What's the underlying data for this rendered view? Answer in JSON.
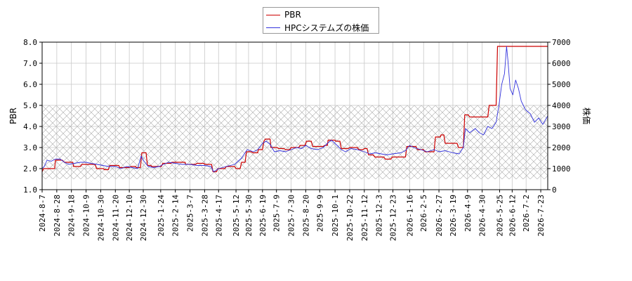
{
  "legend": {
    "items": [
      {
        "label": "PBR",
        "color": "#cc0000"
      },
      {
        "label": "HPCシステムズの株価",
        "color": "#3333dd"
      }
    ]
  },
  "chart_data": {
    "type": "line",
    "xlabel": "",
    "ylabel_left": "PBR",
    "ylabel_right": "株価",
    "ylim_left": [
      1.0,
      8.0
    ],
    "ylim_right": [
      0,
      7000
    ],
    "yticks_left": [
      "1.0",
      "2.0",
      "3.0",
      "4.0",
      "5.0",
      "6.0",
      "7.0",
      "8.0"
    ],
    "yticks_right": [
      "0",
      "1000",
      "2000",
      "3000",
      "4000",
      "5000",
      "6000",
      "7000"
    ],
    "grid": true,
    "hatched_band_left": [
      1.5,
      5.0
    ],
    "legend_position": "top-center",
    "x_start": "2024-8-7",
    "x_end": "2026-8-2",
    "categories": [
      "2024-8-7",
      "2024-8-28",
      "2024-9-18",
      "2024-10-9",
      "2024-10-30",
      "2024-11-20",
      "2024-12-10",
      "2024-12-30",
      "2025-1-24",
      "2025-2-14",
      "2025-3-7",
      "2025-3-28",
      "2025-4-17",
      "2025-5-12",
      "2025-5-30",
      "2025-6-19",
      "2025-7-9",
      "2025-7-30",
      "2025-8-20",
      "2025-9-9",
      "2025-10-1",
      "2025-10-22",
      "2025-11-12",
      "2025-12-3",
      "2025-12-23",
      "2026-1-16",
      "2026-2-5",
      "2026-2-27",
      "2026-3-19",
      "2026-4-9",
      "2026-4-30",
      "2026-5-25",
      "2026-6-12",
      "2026-7-2",
      "2026-7-23"
    ],
    "series": [
      {
        "name": "PBR",
        "axis": "left",
        "color": "#cc0000",
        "points": [
          [
            "2024-8-7",
            1.85
          ],
          [
            "2024-8-9",
            2.0
          ],
          [
            "2024-8-25",
            2.0
          ],
          [
            "2024-8-26",
            2.4
          ],
          [
            "2024-9-5",
            2.4
          ],
          [
            "2024-9-8",
            2.3
          ],
          [
            "2024-9-20",
            2.3
          ],
          [
            "2024-9-21",
            2.1
          ],
          [
            "2024-10-1",
            2.1
          ],
          [
            "2024-10-3",
            2.2
          ],
          [
            "2024-10-22",
            2.2
          ],
          [
            "2024-10-24",
            2.0
          ],
          [
            "2024-11-3",
            2.0
          ],
          [
            "2024-11-4",
            1.95
          ],
          [
            "2024-11-10",
            1.95
          ],
          [
            "2024-11-12",
            2.15
          ],
          [
            "2024-11-25",
            2.15
          ],
          [
            "2024-11-26",
            2.05
          ],
          [
            "2024-12-10",
            2.05
          ],
          [
            "2024-12-12",
            2.1
          ],
          [
            "2024-12-19",
            2.1
          ],
          [
            "2024-12-20",
            2.05
          ],
          [
            "2024-12-26",
            2.05
          ],
          [
            "2024-12-28",
            2.75
          ],
          [
            "2025-1-3",
            2.75
          ],
          [
            "2025-1-5",
            2.15
          ],
          [
            "2025-1-10",
            2.15
          ],
          [
            "2025-1-11",
            2.1
          ],
          [
            "2025-1-25",
            2.1
          ],
          [
            "2025-1-27",
            2.25
          ],
          [
            "2025-2-8",
            2.25
          ],
          [
            "2025-2-9",
            2.3
          ],
          [
            "2025-2-28",
            2.3
          ],
          [
            "2025-3-1",
            2.2
          ],
          [
            "2025-3-15",
            2.2
          ],
          [
            "2025-3-17",
            2.25
          ],
          [
            "2025-3-27",
            2.25
          ],
          [
            "2025-3-28",
            2.2
          ],
          [
            "2025-4-7",
            2.2
          ],
          [
            "2025-4-9",
            1.85
          ],
          [
            "2025-4-14",
            1.85
          ],
          [
            "2025-4-16",
            2.0
          ],
          [
            "2025-4-26",
            2.0
          ],
          [
            "2025-4-28",
            2.1
          ],
          [
            "2025-5-10",
            2.1
          ],
          [
            "2025-5-12",
            2.0
          ],
          [
            "2025-5-18",
            2.0
          ],
          [
            "2025-5-20",
            2.3
          ],
          [
            "2025-5-25",
            2.3
          ],
          [
            "2025-5-27",
            2.8
          ],
          [
            "2025-6-3",
            2.8
          ],
          [
            "2025-6-5",
            2.75
          ],
          [
            "2025-6-12",
            2.75
          ],
          [
            "2025-6-13",
            2.9
          ],
          [
            "2025-6-19",
            2.9
          ],
          [
            "2025-6-21",
            3.3
          ],
          [
            "2025-6-23",
            3.4
          ],
          [
            "2025-6-30",
            3.4
          ],
          [
            "2025-7-1",
            3.0
          ],
          [
            "2025-7-10",
            3.0
          ],
          [
            "2025-7-12",
            2.95
          ],
          [
            "2025-7-20",
            2.95
          ],
          [
            "2025-7-22",
            2.9
          ],
          [
            "2025-7-28",
            2.9
          ],
          [
            "2025-7-30",
            3.0
          ],
          [
            "2025-8-10",
            3.0
          ],
          [
            "2025-8-12",
            3.1
          ],
          [
            "2025-8-19",
            3.1
          ],
          [
            "2025-8-21",
            3.3
          ],
          [
            "2025-8-28",
            3.3
          ],
          [
            "2025-8-30",
            3.05
          ],
          [
            "2025-9-14",
            3.05
          ],
          [
            "2025-9-16",
            3.1
          ],
          [
            "2025-9-20",
            3.1
          ],
          [
            "2025-9-21",
            3.35
          ],
          [
            "2025-10-1",
            3.35
          ],
          [
            "2025-10-2",
            3.3
          ],
          [
            "2025-10-8",
            3.3
          ],
          [
            "2025-10-10",
            2.95
          ],
          [
            "2025-10-20",
            2.95
          ],
          [
            "2025-10-22",
            3.0
          ],
          [
            "2025-11-2",
            3.0
          ],
          [
            "2025-11-4",
            2.9
          ],
          [
            "2025-11-10",
            2.9
          ],
          [
            "2025-11-12",
            2.95
          ],
          [
            "2025-11-16",
            2.95
          ],
          [
            "2025-11-18",
            2.65
          ],
          [
            "2025-11-25",
            2.65
          ],
          [
            "2025-11-27",
            2.55
          ],
          [
            "2025-12-10",
            2.55
          ],
          [
            "2025-12-12",
            2.45
          ],
          [
            "2025-12-20",
            2.45
          ],
          [
            "2025-12-22",
            2.55
          ],
          [
            "2026-1-10",
            2.55
          ],
          [
            "2026-1-12",
            3.05
          ],
          [
            "2026-1-25",
            3.05
          ],
          [
            "2026-1-27",
            2.9
          ],
          [
            "2026-2-5",
            2.9
          ],
          [
            "2026-2-7",
            2.8
          ],
          [
            "2026-2-20",
            2.8
          ],
          [
            "2026-2-22",
            3.5
          ],
          [
            "2026-3-1",
            3.5
          ],
          [
            "2026-3-2",
            3.6
          ],
          [
            "2026-3-6",
            3.6
          ],
          [
            "2026-3-8",
            3.2
          ],
          [
            "2026-3-25",
            3.2
          ],
          [
            "2026-3-27",
            3.0
          ],
          [
            "2026-4-3",
            3.0
          ],
          [
            "2026-4-5",
            4.55
          ],
          [
            "2026-4-10",
            4.55
          ],
          [
            "2026-4-12",
            4.45
          ],
          [
            "2026-5-8",
            4.45
          ],
          [
            "2026-5-10",
            5.0
          ],
          [
            "2026-5-20",
            5.0
          ],
          [
            "2026-5-22",
            7.8
          ],
          [
            "2026-8-2",
            7.8
          ]
        ]
      },
      {
        "name": "HPCシステムズの株価",
        "axis": "right",
        "color": "#3333dd",
        "points": [
          [
            "2024-8-7",
            1000
          ],
          [
            "2024-8-10",
            1100
          ],
          [
            "2024-8-14",
            1400
          ],
          [
            "2024-8-20",
            1350
          ],
          [
            "2024-8-26",
            1450
          ],
          [
            "2024-9-2",
            1450
          ],
          [
            "2024-9-8",
            1300
          ],
          [
            "2024-9-14",
            1200
          ],
          [
            "2024-9-22",
            1250
          ],
          [
            "2024-10-1",
            1300
          ],
          [
            "2024-10-9",
            1300
          ],
          [
            "2024-10-16",
            1250
          ],
          [
            "2024-10-25",
            1200
          ],
          [
            "2024-11-2",
            1150
          ],
          [
            "2024-11-10",
            1100
          ],
          [
            "2024-11-20",
            1100
          ],
          [
            "2024-11-28",
            1000
          ],
          [
            "2024-12-6",
            1100
          ],
          [
            "2024-12-14",
            1050
          ],
          [
            "2024-12-22",
            1000
          ],
          [
            "2024-12-27",
            1600
          ],
          [
            "2024-12-30",
            1400
          ],
          [
            "2025-1-6",
            1100
          ],
          [
            "2025-1-14",
            1050
          ],
          [
            "2025-1-22",
            1100
          ],
          [
            "2025-1-28",
            1200
          ],
          [
            "2025-2-4",
            1300
          ],
          [
            "2025-2-14",
            1250
          ],
          [
            "2025-2-24",
            1200
          ],
          [
            "2025-3-7",
            1200
          ],
          [
            "2025-3-17",
            1150
          ],
          [
            "2025-3-28",
            1150
          ],
          [
            "2025-4-6",
            1100
          ],
          [
            "2025-4-10",
            850
          ],
          [
            "2025-4-17",
            1000
          ],
          [
            "2025-4-28",
            1100
          ],
          [
            "2025-5-10",
            1200
          ],
          [
            "2025-5-20",
            1500
          ],
          [
            "2025-5-28",
            1900
          ],
          [
            "2025-6-6",
            1800
          ],
          [
            "2025-6-12",
            1900
          ],
          [
            "2025-6-19",
            2200
          ],
          [
            "2025-6-24",
            2300
          ],
          [
            "2025-6-30",
            2150
          ],
          [
            "2025-7-6",
            1800
          ],
          [
            "2025-7-14",
            1850
          ],
          [
            "2025-7-22",
            1800
          ],
          [
            "2025-7-30",
            1900
          ],
          [
            "2025-8-7",
            2000
          ],
          [
            "2025-8-14",
            1950
          ],
          [
            "2025-8-20",
            2100
          ],
          [
            "2025-8-28",
            1950
          ],
          [
            "2025-9-6",
            1900
          ],
          [
            "2025-9-14",
            2000
          ],
          [
            "2025-9-20",
            2200
          ],
          [
            "2025-9-26",
            2350
          ],
          [
            "2025-10-4",
            2100
          ],
          [
            "2025-10-10",
            1900
          ],
          [
            "2025-10-16",
            1800
          ],
          [
            "2025-10-24",
            1950
          ],
          [
            "2025-11-2",
            1900
          ],
          [
            "2025-11-12",
            1800
          ],
          [
            "2025-11-20",
            1700
          ],
          [
            "2025-11-28",
            1750
          ],
          [
            "2025-12-6",
            1700
          ],
          [
            "2025-12-14",
            1650
          ],
          [
            "2025-12-23",
            1700
          ],
          [
            "2026-1-3",
            1750
          ],
          [
            "2026-1-10",
            1850
          ],
          [
            "2026-1-16",
            2100
          ],
          [
            "2026-1-22",
            2000
          ],
          [
            "2026-2-1",
            1900
          ],
          [
            "2026-2-10",
            1800
          ],
          [
            "2026-2-20",
            1900
          ],
          [
            "2026-2-27",
            1800
          ],
          [
            "2026-3-8",
            1850
          ],
          [
            "2026-3-19",
            1750
          ],
          [
            "2026-3-28",
            1700
          ],
          [
            "2026-4-3",
            2000
          ],
          [
            "2026-4-6",
            2900
          ],
          [
            "2026-4-12",
            2700
          ],
          [
            "2026-4-20",
            2900
          ],
          [
            "2026-4-26",
            2700
          ],
          [
            "2026-5-2",
            2600
          ],
          [
            "2026-5-8",
            3000
          ],
          [
            "2026-5-14",
            2900
          ],
          [
            "2026-5-20",
            3200
          ],
          [
            "2026-5-24",
            4000
          ],
          [
            "2026-5-28",
            5000
          ],
          [
            "2026-6-1",
            5500
          ],
          [
            "2026-6-4",
            6800
          ],
          [
            "2026-6-6",
            6100
          ],
          [
            "2026-6-9",
            4800
          ],
          [
            "2026-6-13",
            4500
          ],
          [
            "2026-6-17",
            5200
          ],
          [
            "2026-6-21",
            4800
          ],
          [
            "2026-6-25",
            4200
          ],
          [
            "2026-7-1",
            3800
          ],
          [
            "2026-7-8",
            3600
          ],
          [
            "2026-7-14",
            3200
          ],
          [
            "2026-7-20",
            3400
          ],
          [
            "2026-7-26",
            3100
          ],
          [
            "2026-8-2",
            3500
          ]
        ]
      }
    ]
  }
}
